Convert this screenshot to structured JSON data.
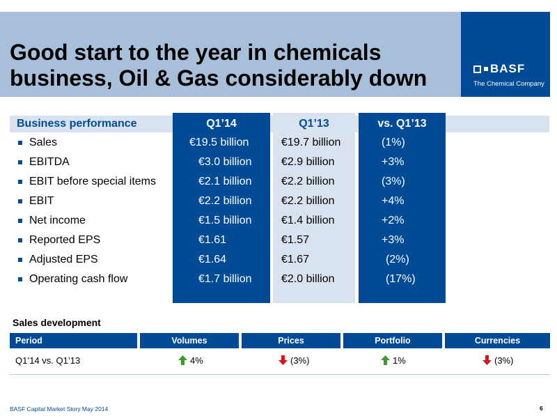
{
  "title": {
    "line1": "Good start to the year in chemicals",
    "line2": "business, Oil & Gas considerably down"
  },
  "logo": {
    "brand": "BASF",
    "tagline": "The Chemical Company"
  },
  "performance": {
    "header": {
      "label": "Business performance",
      "q1_14": "Q1’14",
      "q1_13": "Q1’13",
      "vs": "vs. Q1’13"
    },
    "rows": [
      {
        "label": "Sales",
        "q1_14": "€19.5 billion",
        "q1_13": "€19.7 billion",
        "vs": "(1%)"
      },
      {
        "label": "EBITDA",
        "q1_14": "€3.0 billion",
        "q1_13": "€2.9 billion",
        "vs": "+3%"
      },
      {
        "label": "EBIT before special items",
        "q1_14": "€2.1 billion",
        "q1_13": "€2.2 billion",
        "vs": "(3%)"
      },
      {
        "label": "EBIT",
        "q1_14": "€2.2 billion",
        "q1_13": "€2.2 billion",
        "vs": "+4%"
      },
      {
        "label": "Net income",
        "q1_14": "€1.5 billion",
        "q1_13": "€1.4 billion",
        "vs": "+2%"
      },
      {
        "label": "Reported EPS",
        "q1_14": "€1.61",
        "q1_13": "€1.57",
        "vs": "+3%"
      },
      {
        "label": "Adjusted EPS",
        "q1_14": "€1.64",
        "q1_13": "€1.67",
        "vs": "(2%)"
      },
      {
        "label": "Operating cash flow",
        "q1_14": "€1.7 billion",
        "q1_13": "€2.0 billion",
        "vs": "(17%)"
      }
    ]
  },
  "sales_development": {
    "title": "Sales development",
    "columns": [
      "Period",
      "Volumes",
      "Prices",
      "Portfolio",
      "Currencies"
    ],
    "row": {
      "period": "Q1’14 vs. Q1’13",
      "volumes": {
        "value": "4%",
        "arrow": "up-arrow-icon"
      },
      "prices": {
        "value": "(3%)",
        "arrow": "down-arrow-icon"
      },
      "portfolio": {
        "value": "1%",
        "arrow": "up-arrow-icon"
      },
      "currencies": {
        "value": "(3%)",
        "arrow": "down-arrow-icon"
      }
    }
  },
  "colors": {
    "basf_blue": "#004a96",
    "light_blue": "#d9e3ef",
    "title_band": "#a8bfd9",
    "up_arrow": "#3a9a2a",
    "down_arrow": "#d8141b"
  },
  "footer": {
    "source": "BASF Capital Market Story May 2014",
    "page_number": "6"
  }
}
